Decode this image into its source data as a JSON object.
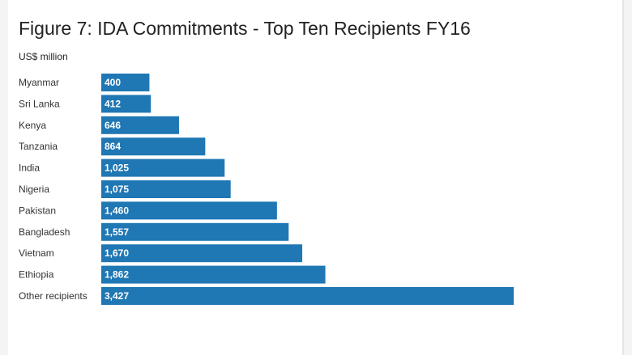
{
  "chart_data": {
    "type": "bar",
    "orientation": "horizontal",
    "title": "Figure 7: IDA Commitments - Top Ten Recipients FY16",
    "subtitle": "US$ million",
    "categories": [
      "Myanmar",
      "Sri Lanka",
      "Kenya",
      "Tanzania",
      "India",
      "Nigeria",
      "Pakistan",
      "Bangladesh",
      "Vietnam",
      "Ethiopia",
      "Other recipients"
    ],
    "values": [
      400,
      412,
      646,
      864,
      1025,
      1075,
      1460,
      1557,
      1670,
      1862,
      3427
    ],
    "value_labels": [
      "400",
      "412",
      "646",
      "864",
      "1,025",
      "1,075",
      "1,460",
      "1,557",
      "1,670",
      "1,862",
      "3,427"
    ],
    "bar_color": "#1f77b4",
    "grid": false,
    "legend": "none"
  }
}
